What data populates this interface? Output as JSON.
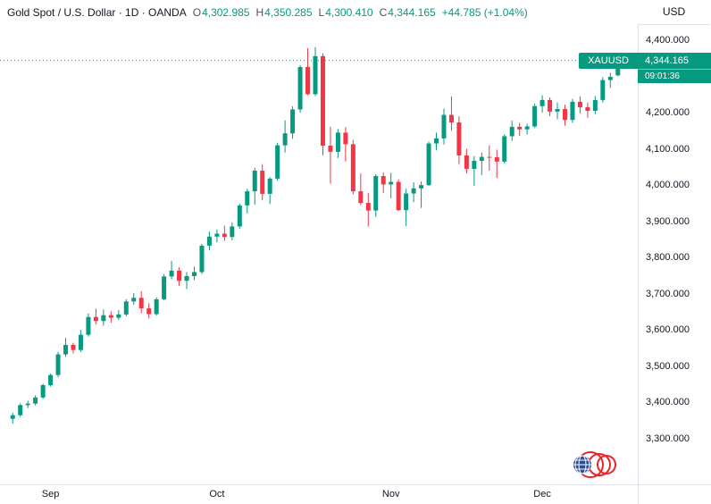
{
  "header": {
    "title": "Gold Spot / U.S. Dollar · 1D · OANDA",
    "open_label": "O",
    "open_value": "4,302.985",
    "high_label": "H",
    "high_value": "4,350.285",
    "low_label": "L",
    "low_value": "4,300.410",
    "close_label": "C",
    "close_value": "4,344.165",
    "change": "+44.785 (+1.04%)"
  },
  "price_axis": {
    "currency": "USD"
  },
  "badge": {
    "symbol": "XAUUSD",
    "price": "4,344.165",
    "countdown": "09:01:36"
  },
  "chart_data": {
    "type": "candlestick",
    "symbol": "Gold Spot / U.S. Dollar",
    "exchange": "OANDA",
    "interval": "1D",
    "currency": "USD",
    "up_color": "#089981",
    "down_color": "#f23645",
    "accent_color": "#089981",
    "axis_text_color": "#131722",
    "grid_line_color": "#e0e3eb",
    "ylim": [
      3300,
      4400
    ],
    "y_ticks": [
      {
        "value": 4400,
        "label": "4,400.000"
      },
      {
        "value": 4300,
        "label": "4,300.000"
      },
      {
        "value": 4200,
        "label": "4,200.000"
      },
      {
        "value": 4100,
        "label": "4,100.000"
      },
      {
        "value": 4000,
        "label": "4,000.000"
      },
      {
        "value": 3900,
        "label": "3,900.000"
      },
      {
        "value": 3800,
        "label": "3,800.000"
      },
      {
        "value": 3700,
        "label": "3,700.000"
      },
      {
        "value": 3600,
        "label": "3,600.000"
      },
      {
        "value": 3500,
        "label": "3,500.000"
      },
      {
        "value": 3400,
        "label": "3,400.000"
      },
      {
        "value": 3300,
        "label": "3,300.000"
      }
    ],
    "x_ticks": [
      {
        "index": 5,
        "label": "Sep"
      },
      {
        "index": 27,
        "label": "Oct"
      },
      {
        "index": 50,
        "label": "Nov"
      },
      {
        "index": 70,
        "label": "Dec"
      }
    ],
    "last": {
      "open": 4302.985,
      "high": 4350.285,
      "low": 4300.41,
      "close": 4344.165,
      "change": "+44.785 (+1.04%)"
    },
    "candles": [
      [
        3355,
        3372,
        3342,
        3365
      ],
      [
        3365,
        3398,
        3360,
        3393
      ],
      [
        3393,
        3405,
        3385,
        3397
      ],
      [
        3397,
        3420,
        3392,
        3414
      ],
      [
        3414,
        3452,
        3410,
        3448
      ],
      [
        3448,
        3480,
        3444,
        3476
      ],
      [
        3476,
        3540,
        3470,
        3533
      ],
      [
        3533,
        3578,
        3526,
        3559
      ],
      [
        3559,
        3565,
        3535,
        3545
      ],
      [
        3545,
        3600,
        3540,
        3587
      ],
      [
        3587,
        3646,
        3582,
        3636
      ],
      [
        3636,
        3659,
        3615,
        3625
      ],
      [
        3625,
        3657,
        3612,
        3641
      ],
      [
        3641,
        3652,
        3620,
        3634
      ],
      [
        3634,
        3655,
        3628,
        3643
      ],
      [
        3643,
        3685,
        3638,
        3679
      ],
      [
        3679,
        3702,
        3670,
        3689
      ],
      [
        3689,
        3707,
        3646,
        3660
      ],
      [
        3660,
        3674,
        3632,
        3644
      ],
      [
        3644,
        3690,
        3640,
        3685
      ],
      [
        3685,
        3755,
        3682,
        3748
      ],
      [
        3748,
        3791,
        3740,
        3764
      ],
      [
        3764,
        3773,
        3722,
        3736
      ],
      [
        3736,
        3760,
        3713,
        3749
      ],
      [
        3749,
        3775,
        3738,
        3760
      ],
      [
        3760,
        3838,
        3755,
        3833
      ],
      [
        3833,
        3872,
        3820,
        3858
      ],
      [
        3858,
        3878,
        3842,
        3866
      ],
      [
        3866,
        3888,
        3846,
        3857
      ],
      [
        3857,
        3897,
        3848,
        3886
      ],
      [
        3886,
        3949,
        3880,
        3944
      ],
      [
        3944,
        3990,
        3922,
        3983
      ],
      [
        3983,
        4048,
        3946,
        4040
      ],
      [
        4040,
        4058,
        3958,
        3976
      ],
      [
        3976,
        4022,
        3948,
        4018
      ],
      [
        4018,
        4117,
        4012,
        4110
      ],
      [
        4110,
        4179,
        4090,
        4143
      ],
      [
        4143,
        4218,
        4128,
        4209
      ],
      [
        4209,
        4331,
        4200,
        4326
      ],
      [
        4326,
        4378,
        4248,
        4251
      ],
      [
        4251,
        4381,
        4246,
        4356
      ],
      [
        4356,
        4364,
        4082,
        4109
      ],
      [
        4109,
        4161,
        4004,
        4092
      ],
      [
        4092,
        4155,
        4075,
        4145
      ],
      [
        4145,
        4160,
        4065,
        4113
      ],
      [
        4113,
        4125,
        3975,
        3983
      ],
      [
        3983,
        4032,
        3945,
        3951
      ],
      [
        3951,
        3978,
        3886,
        3930
      ],
      [
        3930,
        4030,
        3912,
        4025
      ],
      [
        4025,
        4035,
        3978,
        4002
      ],
      [
        4002,
        4034,
        3964,
        4009
      ],
      [
        4009,
        4016,
        3929,
        3931
      ],
      [
        3931,
        3990,
        3887,
        3977
      ],
      [
        3977,
        4008,
        3953,
        3991
      ],
      [
        3991,
        4010,
        3937,
        4000
      ],
      [
        4000,
        4120,
        3998,
        4115
      ],
      [
        4115,
        4145,
        4096,
        4129
      ],
      [
        4129,
        4211,
        4112,
        4194
      ],
      [
        4194,
        4245,
        4150,
        4173
      ],
      [
        4173,
        4190,
        4058,
        4082
      ],
      [
        4082,
        4100,
        4032,
        4045
      ],
      [
        4045,
        4080,
        3998,
        4067
      ],
      [
        4067,
        4090,
        4028,
        4078
      ],
      [
        4078,
        4110,
        4040,
        4077
      ],
      [
        4077,
        4098,
        4020,
        4065
      ],
      [
        4065,
        4140,
        4060,
        4135
      ],
      [
        4135,
        4178,
        4122,
        4161
      ],
      [
        4161,
        4172,
        4136,
        4154
      ],
      [
        4154,
        4170,
        4140,
        4162
      ],
      [
        4162,
        4225,
        4158,
        4218
      ],
      [
        4218,
        4248,
        4200,
        4235
      ],
      [
        4235,
        4242,
        4190,
        4203
      ],
      [
        4203,
        4228,
        4182,
        4210
      ],
      [
        4210,
        4222,
        4164,
        4180
      ],
      [
        4180,
        4238,
        4172,
        4230
      ],
      [
        4230,
        4245,
        4198,
        4215
      ],
      [
        4215,
        4228,
        4186,
        4205
      ],
      [
        4205,
        4246,
        4196,
        4235
      ],
      [
        4235,
        4298,
        4228,
        4290
      ],
      [
        4290,
        4310,
        4268,
        4299
      ],
      [
        4302.985,
        4350.285,
        4300.41,
        4344.165
      ]
    ]
  }
}
